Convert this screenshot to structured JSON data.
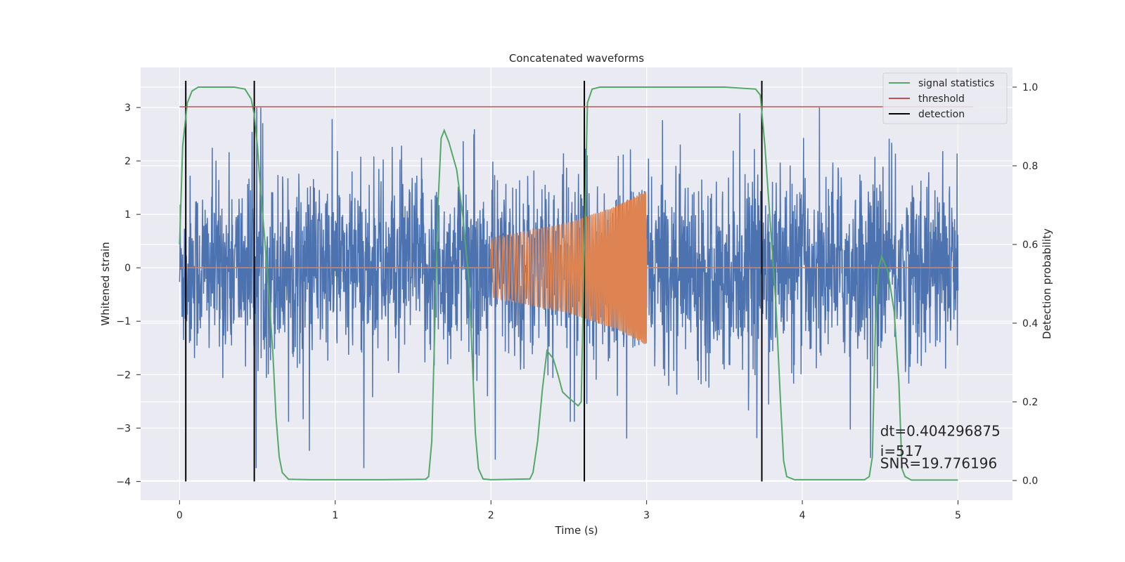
{
  "chart_data": {
    "type": "line",
    "title": "Concatenated waveforms",
    "xlabel": "Time (s)",
    "ylabel": "Whitened strain",
    "y2label": "Detection probability",
    "xlim": [
      -0.25,
      5.35
    ],
    "ylim": [
      -4.35,
      3.75
    ],
    "y2lim": [
      -0.05,
      1.05
    ],
    "x_ticks": [
      0,
      1,
      2,
      3,
      4,
      5
    ],
    "y_ticks": [
      -4,
      -3,
      -2,
      -1,
      0,
      1,
      2,
      3
    ],
    "y2_ticks": [
      0.0,
      0.2,
      0.4,
      0.6,
      0.8,
      1.0
    ],
    "x_tick_labels": [
      "0",
      "1",
      "2",
      "3",
      "4",
      "5"
    ],
    "y_tick_labels": [
      "−4",
      "−3",
      "−2",
      "−1",
      "0",
      "1",
      "2",
      "3"
    ],
    "y2_tick_labels": [
      "0.0",
      "0.2",
      "0.4",
      "0.6",
      "0.8",
      "1.0"
    ],
    "grid": true,
    "legend_position": "top-right",
    "colors": {
      "background": "#eaeaf2",
      "strain": "#4c72b0",
      "injected": "#dd8452",
      "signal_statistics": "#55a868",
      "threshold": "#c44e52",
      "detection": "#000000",
      "grid": "#ffffff"
    },
    "series": [
      {
        "name": "",
        "role": "whitened strain noise",
        "axis": "left",
        "x_range": [
          0,
          5
        ],
        "samples": 2500,
        "typical_range": [
          -1.0,
          1.0
        ],
        "approx_extremes": [
          -3.75,
          3.0
        ],
        "description_of_shape": "dense noise"
      },
      {
        "name": "",
        "role": "injected chirp",
        "axis": "left",
        "x_range": [
          0,
          5
        ],
        "chirp_start": 2.0,
        "chirp_end": 3.0,
        "amplitude_points": [
          [
            2.0,
            0.55
          ],
          [
            2.5,
            0.85
          ],
          [
            2.8,
            1.15
          ],
          [
            3.0,
            1.45
          ]
        ],
        "negative_envelope_points": [
          [
            2.0,
            -0.55
          ],
          [
            2.5,
            -0.85
          ],
          [
            2.8,
            -1.15
          ],
          [
            3.0,
            -1.45
          ]
        ]
      },
      {
        "name": "signal statistics",
        "axis": "right",
        "points": [
          [
            0.0,
            0.6
          ],
          [
            0.02,
            0.85
          ],
          [
            0.05,
            0.96
          ],
          [
            0.08,
            0.99
          ],
          [
            0.12,
            1.0
          ],
          [
            0.35,
            1.0
          ],
          [
            0.42,
            0.995
          ],
          [
            0.46,
            0.97
          ],
          [
            0.48,
            0.93
          ],
          [
            0.5,
            0.85
          ],
          [
            0.52,
            0.74
          ],
          [
            0.55,
            0.6
          ],
          [
            0.58,
            0.44
          ],
          [
            0.6,
            0.32
          ],
          [
            0.62,
            0.16
          ],
          [
            0.64,
            0.06
          ],
          [
            0.66,
            0.02
          ],
          [
            0.7,
            0.003
          ],
          [
            0.85,
            0.002
          ],
          [
            1.3,
            0.002
          ],
          [
            1.58,
            0.003
          ],
          [
            1.6,
            0.01
          ],
          [
            1.62,
            0.1
          ],
          [
            1.64,
            0.4
          ],
          [
            1.66,
            0.7
          ],
          [
            1.68,
            0.87
          ],
          [
            1.7,
            0.89
          ],
          [
            1.73,
            0.86
          ],
          [
            1.78,
            0.79
          ],
          [
            1.82,
            0.67
          ],
          [
            1.86,
            0.5
          ],
          [
            1.9,
            0.12
          ],
          [
            1.92,
            0.03
          ],
          [
            1.95,
            0.004
          ],
          [
            2.0,
            0.002
          ],
          [
            2.25,
            0.004
          ],
          [
            2.27,
            0.02
          ],
          [
            2.3,
            0.1
          ],
          [
            2.33,
            0.23
          ],
          [
            2.36,
            0.33
          ],
          [
            2.4,
            0.31
          ],
          [
            2.43,
            0.27
          ],
          [
            2.46,
            0.225
          ],
          [
            2.5,
            0.21
          ],
          [
            2.53,
            0.2
          ],
          [
            2.56,
            0.19
          ],
          [
            2.58,
            0.2
          ],
          [
            2.6,
            0.6
          ],
          [
            2.62,
            0.96
          ],
          [
            2.65,
            0.995
          ],
          [
            2.7,
            1.0
          ],
          [
            3.0,
            1.0
          ],
          [
            3.5,
            1.0
          ],
          [
            3.7,
            0.995
          ],
          [
            3.73,
            0.98
          ],
          [
            3.76,
            0.85
          ],
          [
            3.8,
            0.62
          ],
          [
            3.83,
            0.45
          ],
          [
            3.86,
            0.2
          ],
          [
            3.88,
            0.05
          ],
          [
            3.9,
            0.01
          ],
          [
            3.95,
            0.002
          ],
          [
            4.4,
            0.002
          ],
          [
            4.43,
            0.01
          ],
          [
            4.45,
            0.06
          ],
          [
            4.47,
            0.4
          ],
          [
            4.49,
            0.54
          ],
          [
            4.51,
            0.57
          ],
          [
            4.55,
            0.53
          ],
          [
            4.59,
            0.43
          ],
          [
            4.62,
            0.25
          ],
          [
            4.64,
            0.03
          ],
          [
            4.66,
            0.01
          ],
          [
            4.7,
            0.001
          ],
          [
            5.0,
            0.001
          ]
        ]
      },
      {
        "name": "threshold",
        "axis": "right",
        "points": [
          [
            0.0,
            0.95
          ],
          [
            5.1,
            0.95
          ]
        ]
      },
      {
        "name": "detection",
        "axis": "left",
        "type": "vlines",
        "x": [
          0.04,
          0.48,
          2.6,
          3.74
        ],
        "y_range": [
          -4.0,
          3.5
        ]
      }
    ],
    "annotations": [
      {
        "text": "dt=0.404296875",
        "x": 4.5,
        "y": -3.15
      },
      {
        "text": " i=517",
        "x": 4.5,
        "y": -3.52
      },
      {
        "text": "SNR=19.776196",
        "x": 4.5,
        "y": -3.75
      }
    ]
  }
}
